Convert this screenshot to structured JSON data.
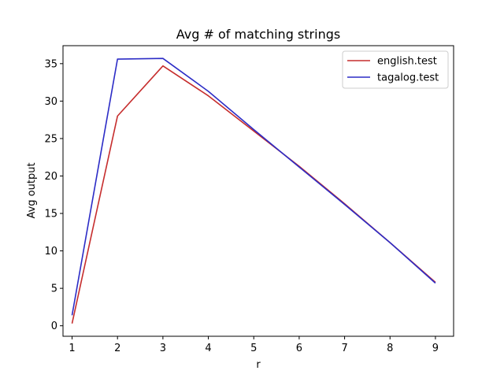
{
  "chart_data": {
    "type": "line",
    "title": "Avg # of matching strings",
    "xlabel": "r",
    "ylabel": "Avg output",
    "x": [
      1,
      2,
      3,
      4,
      5,
      6,
      7,
      8,
      9
    ],
    "xlim": [
      0.8,
      9.4
    ],
    "ylim": [
      -1.4,
      37.4
    ],
    "xticks": [
      1,
      2,
      3,
      4,
      5,
      6,
      7,
      8,
      9
    ],
    "yticks": [
      0,
      5,
      10,
      15,
      20,
      25,
      30,
      35
    ],
    "grid": false,
    "legend_position": "top-right",
    "series": [
      {
        "name": "english.test",
        "color": "#c62d2d",
        "values": [
          0.3,
          28.0,
          34.7,
          30.7,
          26.0,
          21.3,
          16.3,
          11.1,
          5.8
        ]
      },
      {
        "name": "tagalog.test",
        "color": "#2c2cc6",
        "values": [
          1.4,
          35.6,
          35.7,
          31.3,
          26.2,
          21.2,
          16.2,
          11.1,
          5.7
        ]
      }
    ]
  }
}
